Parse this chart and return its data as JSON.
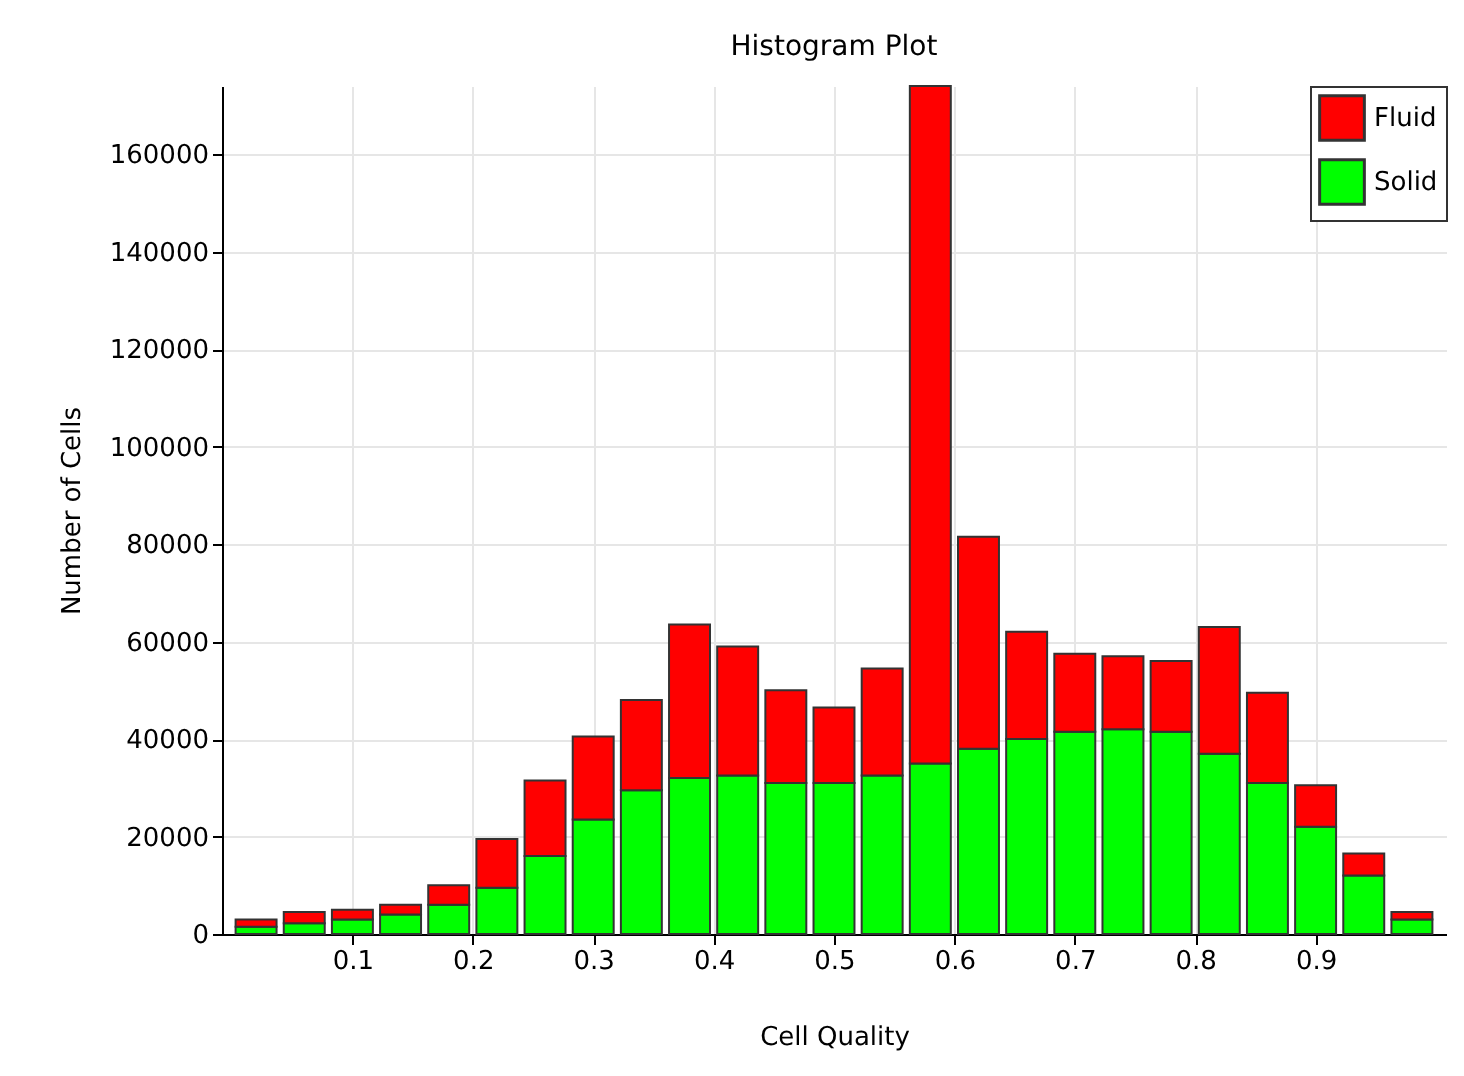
{
  "chart_data": {
    "type": "bar",
    "title": "Histogram Plot",
    "xlabel": "Cell Quality",
    "ylabel": "Number of Cells",
    "x": [
      0.02,
      0.06,
      0.1,
      0.14,
      0.18,
      0.22,
      0.26,
      0.3,
      0.34,
      0.38,
      0.42,
      0.46,
      0.5,
      0.54,
      0.58,
      0.62,
      0.66,
      0.7,
      0.74,
      0.78,
      0.82,
      0.86,
      0.9,
      0.94,
      0.98
    ],
    "stacked": true,
    "series": [
      {
        "name": "Solid",
        "color": "#00ff00",
        "values": [
          1500,
          2200,
          3000,
          4000,
          6000,
          9500,
          16000,
          23500,
          29500,
          32000,
          32500,
          31000,
          31000,
          32500,
          35000,
          38000,
          40000,
          41500,
          42000,
          41500,
          37000,
          31000,
          22000,
          12000,
          3000
        ]
      },
      {
        "name": "Fluid",
        "color": "#ff0000",
        "values": [
          1500,
          2300,
          2000,
          2000,
          4000,
          10000,
          15500,
          17000,
          18500,
          31500,
          26500,
          19000,
          15500,
          22000,
          139000,
          43500,
          22000,
          16000,
          15000,
          14500,
          26000,
          18500,
          8500,
          4500,
          1500
        ]
      }
    ],
    "xlim": [
      0,
      1
    ],
    "xticks": [
      0.1,
      0.2,
      0.3,
      0.4,
      0.5,
      0.6,
      0.7,
      0.8,
      0.9
    ],
    "ylim": [
      0,
      174000
    ],
    "yticks": [
      0,
      20000,
      40000,
      60000,
      80000,
      100000,
      120000,
      140000,
      160000
    ],
    "grid": true,
    "legend": "top right"
  }
}
